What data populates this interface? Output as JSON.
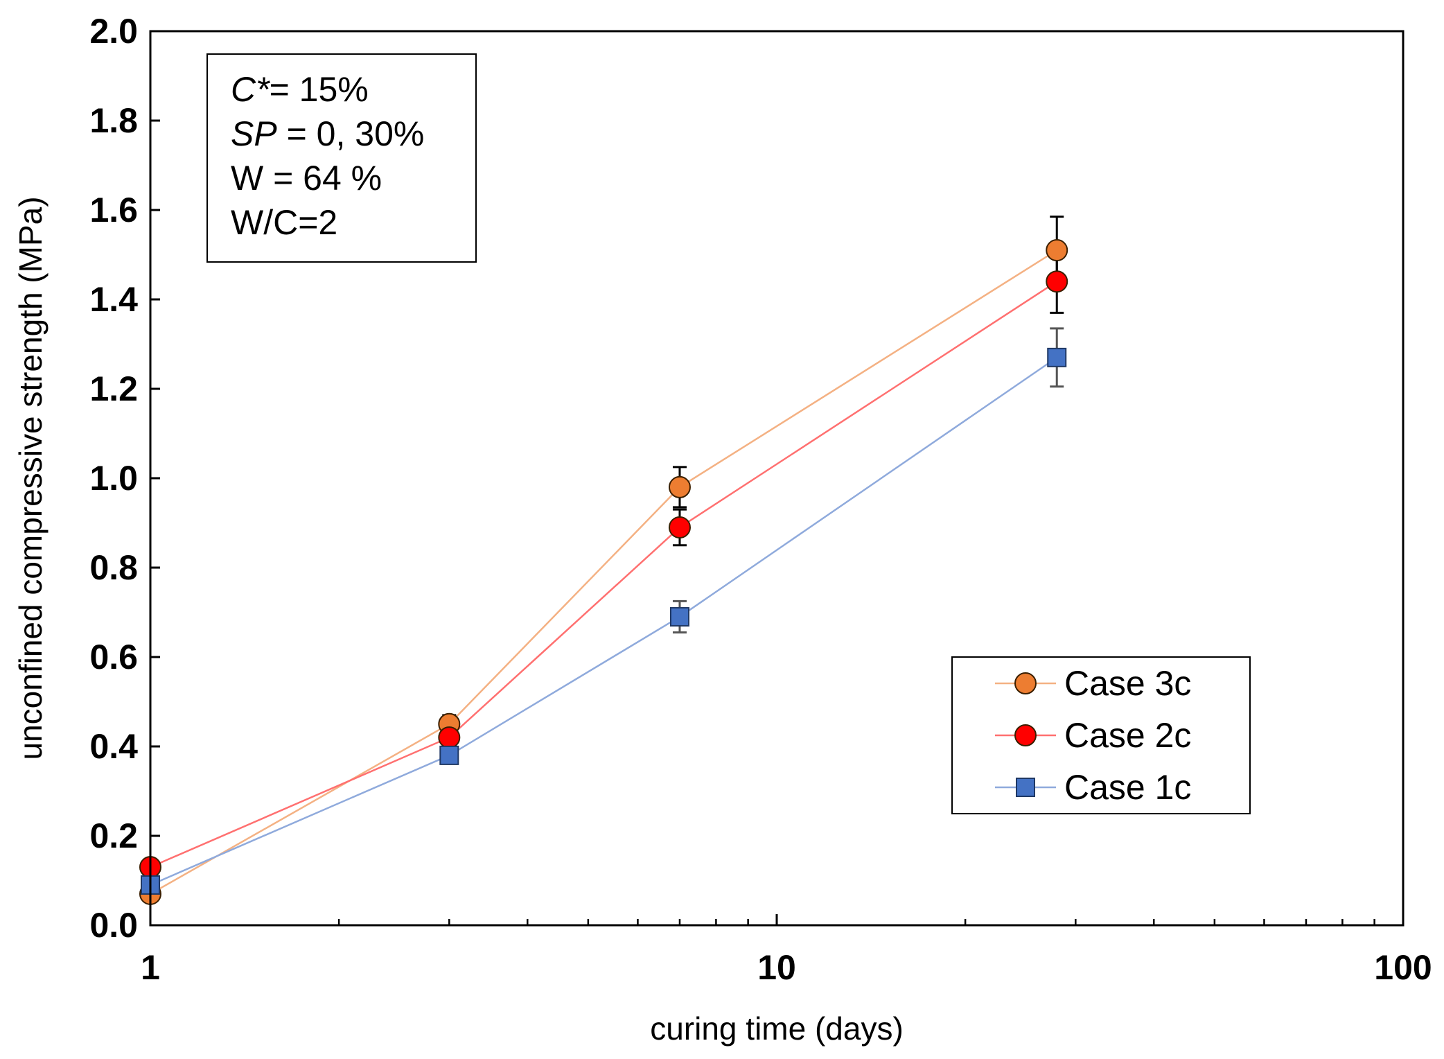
{
  "chart_data": {
    "type": "line",
    "xscale": "log",
    "xlabel": "curing time (days)",
    "ylabel": "unconfined compressive strength (MPa)",
    "xlim": [
      1,
      100
    ],
    "ylim": [
      0.0,
      2.0
    ],
    "x_ticks": [
      1,
      10,
      100
    ],
    "x_tick_labels": [
      "1",
      "10",
      "100"
    ],
    "y_ticks": [
      0.0,
      0.2,
      0.4,
      0.6,
      0.8,
      1.0,
      1.2,
      1.4,
      1.6,
      1.8,
      2.0
    ],
    "y_tick_labels": [
      "0.0",
      "0.2",
      "0.4",
      "0.6",
      "0.8",
      "1.0",
      "1.2",
      "1.4",
      "1.6",
      "1.8",
      "2.0"
    ],
    "x": [
      1,
      3,
      7,
      28
    ],
    "series": [
      {
        "name": "Case 3c",
        "marker": "circle",
        "fill": "#ED7D31",
        "line_color": "#F4B183",
        "values": [
          0.07,
          0.45,
          0.98,
          1.51
        ],
        "error": [
          0.0,
          0.02,
          0.045,
          0.075
        ]
      },
      {
        "name": "Case 2c",
        "marker": "circle",
        "fill": "#FF0000",
        "line_color": "#FF7070",
        "values": [
          0.13,
          0.42,
          0.89,
          1.44
        ],
        "error": [
          0.0,
          0.015,
          0.04,
          0.07
        ]
      },
      {
        "name": "Case 1c",
        "marker": "square",
        "fill": "#4472C4",
        "line_color": "#8FAADC",
        "values": [
          0.09,
          0.38,
          0.69,
          1.27
        ],
        "error": [
          0.0,
          0.01,
          0.035,
          0.065
        ]
      }
    ],
    "legend_position": "bottom-right",
    "annotation_position": "top-left",
    "annotation": [
      {
        "italic": "C*",
        "rest": "= 15%"
      },
      {
        "italic": "SP",
        "rest": " = 0, 30%"
      },
      {
        "italic": "",
        "rest": "W = 64 %"
      },
      {
        "italic": "",
        "rest": "W/C=2"
      }
    ]
  }
}
